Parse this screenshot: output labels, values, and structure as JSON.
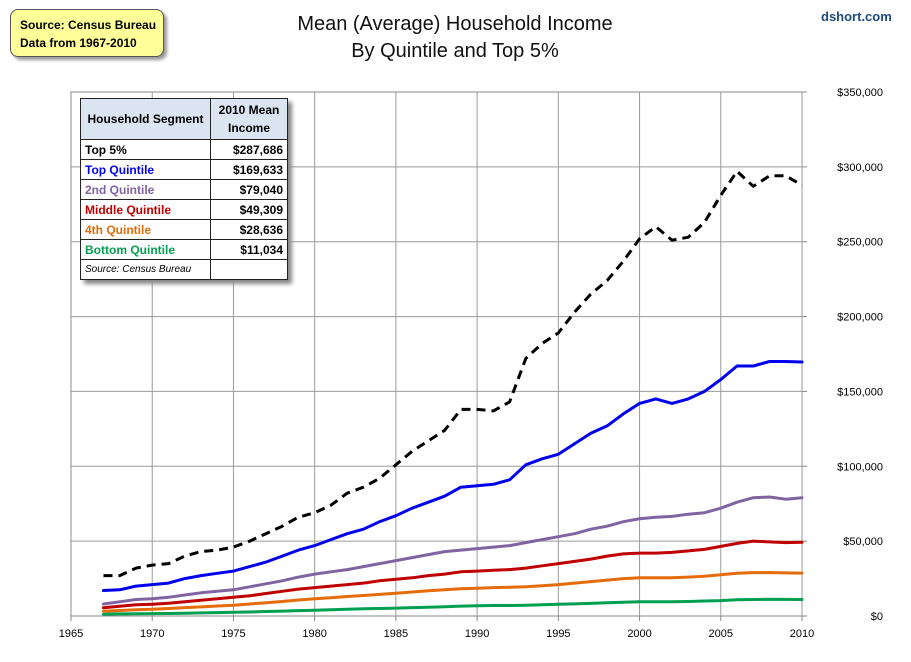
{
  "source_box": {
    "line1": "Source: Census Bureau",
    "line2": "Data from 1967-2010"
  },
  "brand": "dshort.com",
  "chart_data": {
    "type": "line",
    "title": "Mean (Average) Household Income",
    "subtitle": "By Quintile and Top 5%",
    "xlim": [
      1965,
      2010
    ],
    "ylim": [
      0,
      350000
    ],
    "x_ticks": [
      "1965",
      "1970",
      "1975",
      "1980",
      "1985",
      "1990",
      "1995",
      "2000",
      "2005",
      "2010"
    ],
    "y_ticks": [
      "$0",
      "$50,000",
      "$100,000",
      "$150,000",
      "$200,000",
      "$250,000",
      "$300,000",
      "$350,000"
    ],
    "grid": true,
    "x": [
      1967,
      1968,
      1969,
      1970,
      1971,
      1972,
      1973,
      1974,
      1975,
      1976,
      1977,
      1978,
      1979,
      1980,
      1981,
      1982,
      1983,
      1984,
      1985,
      1986,
      1987,
      1988,
      1989,
      1990,
      1991,
      1992,
      1993,
      1994,
      1995,
      1996,
      1997,
      1998,
      1999,
      2000,
      2001,
      2002,
      2003,
      2004,
      2005,
      2006,
      2007,
      2008,
      2009,
      2010
    ],
    "series": [
      {
        "name": "Top 5%",
        "color": "#000000",
        "dashed": true,
        "values": [
          27000,
          27000,
          32000,
          34000,
          35000,
          40000,
          43000,
          44000,
          46000,
          50000,
          55000,
          60000,
          66000,
          69000,
          74000,
          82000,
          86000,
          92000,
          101000,
          110000,
          117000,
          124000,
          138000,
          138000,
          137000,
          143000,
          172000,
          182000,
          189000,
          203000,
          215000,
          224000,
          237000,
          252000,
          260000,
          251000,
          253000,
          263000,
          281000,
          297000,
          287000,
          294000,
          294000,
          287686
        ]
      },
      {
        "name": "Top Quintile",
        "color": "#0000ee",
        "dashed": false,
        "values": [
          17000,
          17500,
          20000,
          21000,
          22000,
          25000,
          27000,
          28500,
          30000,
          33000,
          36000,
          40000,
          44000,
          47000,
          51000,
          55000,
          58000,
          63000,
          67000,
          72000,
          76000,
          80000,
          86000,
          87000,
          88000,
          91000,
          101000,
          105000,
          108000,
          115000,
          122000,
          127000,
          135000,
          142000,
          145000,
          142000,
          145000,
          150000,
          158000,
          167000,
          167000,
          170000,
          170000,
          169633
        ]
      },
      {
        "name": "2nd Quintile",
        "color": "#8064a2",
        "dashed": false,
        "values": [
          8000,
          9500,
          11000,
          11500,
          12500,
          14000,
          15500,
          16500,
          17500,
          19500,
          21500,
          23500,
          26000,
          28000,
          29500,
          31000,
          33000,
          35000,
          37000,
          39000,
          41000,
          43000,
          44000,
          45000,
          46000,
          47000,
          49000,
          51000,
          53000,
          55000,
          58000,
          60000,
          63000,
          65000,
          66000,
          66500,
          68000,
          69000,
          72000,
          76000,
          79000,
          79500,
          78000,
          79040
        ]
      },
      {
        "name": "Middle Quintile",
        "color": "#c00000",
        "dashed": false,
        "values": [
          5500,
          6500,
          7500,
          7800,
          8500,
          9500,
          10500,
          11500,
          12500,
          13500,
          15000,
          16500,
          18000,
          19000,
          20000,
          21000,
          22000,
          23500,
          24500,
          25500,
          27000,
          28000,
          29500,
          30000,
          30500,
          31000,
          32000,
          33500,
          35000,
          36500,
          38000,
          40000,
          41500,
          42000,
          42000,
          42500,
          43500,
          44500,
          46500,
          48500,
          50000,
          49500,
          49000,
          49309
        ]
      },
      {
        "name": "4th Quintile",
        "color": "#e46c0a",
        "dashed": false,
        "values": [
          3200,
          3700,
          4200,
          4500,
          5000,
          5600,
          6100,
          6700,
          7200,
          8000,
          8800,
          9700,
          10700,
          11500,
          12200,
          13000,
          13700,
          14400,
          15200,
          16000,
          16800,
          17500,
          18200,
          18600,
          19000,
          19200,
          19500,
          20200,
          21000,
          22000,
          23000,
          24000,
          25000,
          25500,
          25500,
          25500,
          26000,
          26500,
          27500,
          28500,
          29000,
          29000,
          28800,
          28636
        ]
      },
      {
        "name": "Bottom Quintile",
        "color": "#00a050",
        "dashed": false,
        "values": [
          1200,
          1400,
          1500,
          1600,
          1700,
          1900,
          2100,
          2300,
          2500,
          2700,
          3000,
          3300,
          3600,
          3900,
          4200,
          4500,
          4800,
          5000,
          5300,
          5600,
          5900,
          6200,
          6600,
          6800,
          7000,
          7000,
          7200,
          7500,
          7800,
          8100,
          8400,
          8800,
          9200,
          9500,
          9500,
          9500,
          9700,
          10000,
          10300,
          10800,
          11000,
          11200,
          11100,
          11034
        ]
      }
    ]
  },
  "legend_table": {
    "header_segment": "Household Segment",
    "header_income": "2010 Mean Income",
    "rows": [
      {
        "label": "Top 5%",
        "value": "$287,686",
        "color": "#000000"
      },
      {
        "label": "Top Quintile",
        "value": "$169,633",
        "color": "#0000ee"
      },
      {
        "label": "2nd Quintile",
        "value": "$79,040",
        "color": "#8064a2"
      },
      {
        "label": "Middle Quintile",
        "value": "$49,309",
        "color": "#c00000"
      },
      {
        "label": "4th Quintile",
        "value": "$28,636",
        "color": "#e46c0a"
      },
      {
        "label": "Bottom Quintile",
        "value": "$11,034",
        "color": "#00a050"
      }
    ],
    "source_note": "Source: Census Bureau"
  }
}
